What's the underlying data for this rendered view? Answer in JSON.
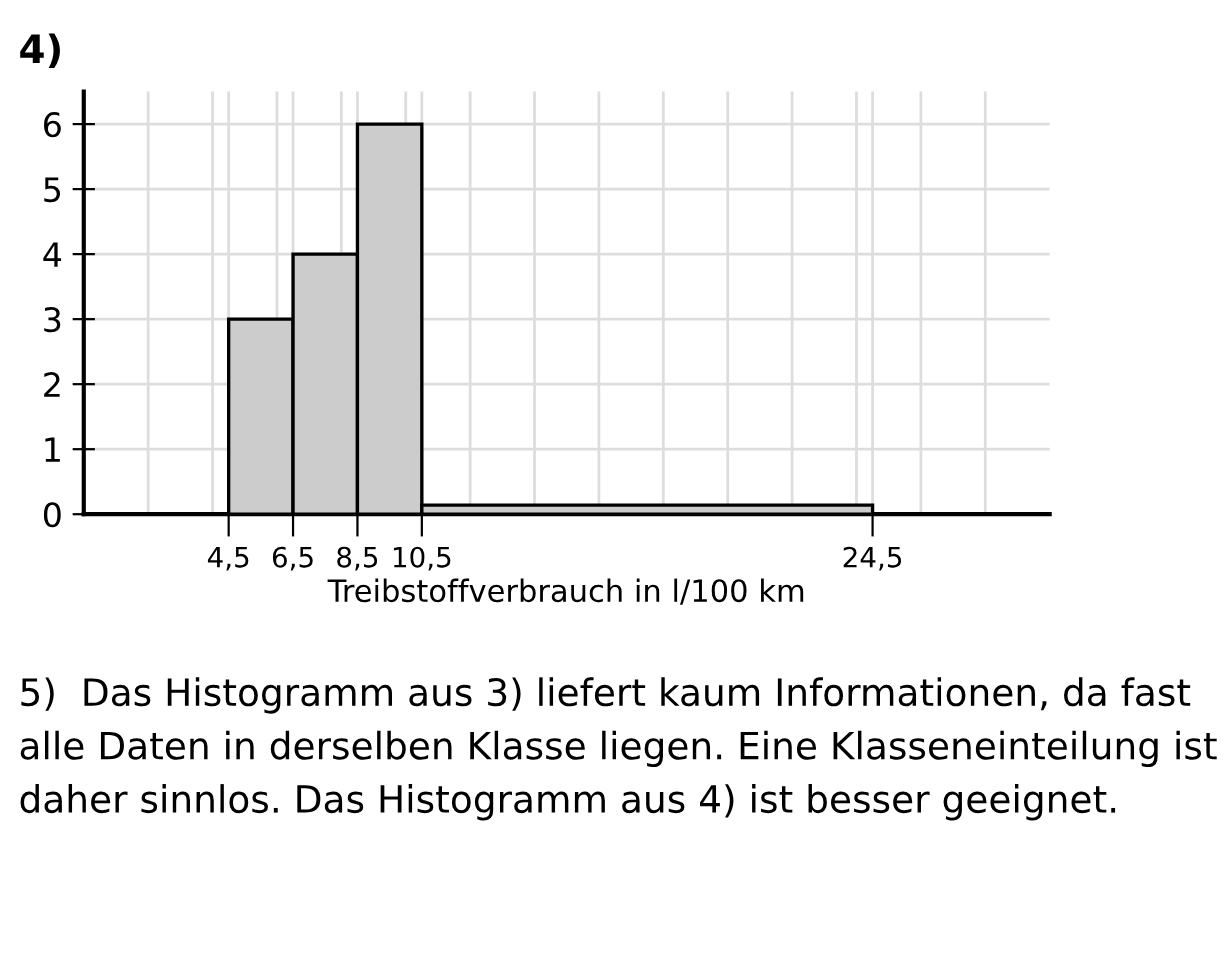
{
  "chart_data": {
    "type": "histogram",
    "title": "4)",
    "xlabel": "Treibstoffverbrauch in l/100 km",
    "bins": [
      4.5,
      6.5,
      8.5,
      10.5,
      24.5
    ],
    "values": [
      3,
      4,
      6,
      0.14
    ],
    "color": "#cccccc",
    "xlim": [
      0,
      30
    ],
    "ylim": [
      0,
      6.5
    ],
    "xticks": [
      {
        "value": 2,
        "label": null
      },
      {
        "value": 4,
        "label": null
      },
      {
        "value": 4.5,
        "label": "4,5"
      },
      {
        "value": 6,
        "label": null
      },
      {
        "value": 6.5,
        "label": "6,5"
      },
      {
        "value": 8,
        "label": null
      },
      {
        "value": 8.5,
        "label": "8,5"
      },
      {
        "value": 10,
        "label": null
      },
      {
        "value": 10.5,
        "label": "10,5"
      },
      {
        "value": 12,
        "label": null
      },
      {
        "value": 14,
        "label": null
      },
      {
        "value": 16,
        "label": null
      },
      {
        "value": 18,
        "label": null
      },
      {
        "value": 20,
        "label": null
      },
      {
        "value": 22,
        "label": null
      },
      {
        "value": 24,
        "label": null
      },
      {
        "value": 24.5,
        "label": "24,5"
      },
      {
        "value": 26,
        "label": null
      },
      {
        "value": 28,
        "label": null
      }
    ],
    "yticks": [
      0,
      1,
      2,
      3,
      4,
      5,
      6
    ],
    "grid": true,
    "annotations": [
      "5)  Das Histogramm aus 3) liefert kaum Informationen, da fast alle Daten in derselben Klasse liegen. Eine Klasseneinteilung ist daher sinnlos. Das Histogramm aus 4) ist besser geeignet."
    ]
  }
}
